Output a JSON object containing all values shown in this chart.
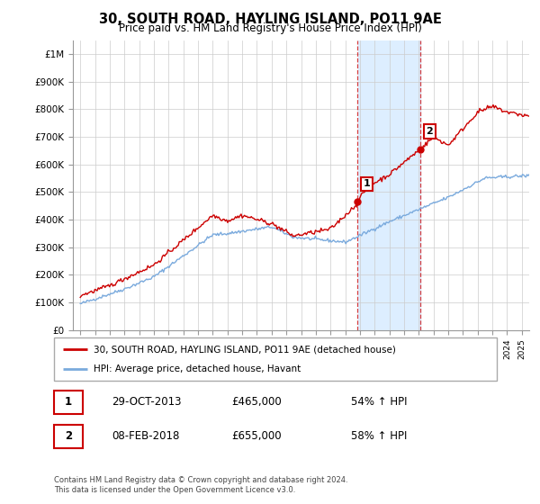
{
  "title": "30, SOUTH ROAD, HAYLING ISLAND, PO11 9AE",
  "subtitle": "Price paid vs. HM Land Registry's House Price Index (HPI)",
  "ylabel_ticks": [
    "£0",
    "£100K",
    "£200K",
    "£300K",
    "£400K",
    "£500K",
    "£600K",
    "£700K",
    "£800K",
    "£900K",
    "£1M"
  ],
  "ytick_values": [
    0,
    100000,
    200000,
    300000,
    400000,
    500000,
    600000,
    700000,
    800000,
    900000,
    1000000
  ],
  "ylim": [
    0,
    1050000
  ],
  "xlim_start": 1994.5,
  "xlim_end": 2025.5,
  "sale1_date": 2013.83,
  "sale1_price": 465000,
  "sale2_date": 2018.1,
  "sale2_price": 655000,
  "legend_line1": "30, SOUTH ROAD, HAYLING ISLAND, PO11 9AE (detached house)",
  "legend_line2": "HPI: Average price, detached house, Havant",
  "table_row1": [
    "1",
    "29-OCT-2013",
    "£465,000",
    "54% ↑ HPI"
  ],
  "table_row2": [
    "2",
    "08-FEB-2018",
    "£655,000",
    "58% ↑ HPI"
  ],
  "footer": "Contains HM Land Registry data © Crown copyright and database right 2024.\nThis data is licensed under the Open Government Licence v3.0.",
  "red_color": "#cc0000",
  "blue_color": "#7aaadd",
  "highlight_color": "#ddeeff",
  "grid_color": "#cccccc"
}
